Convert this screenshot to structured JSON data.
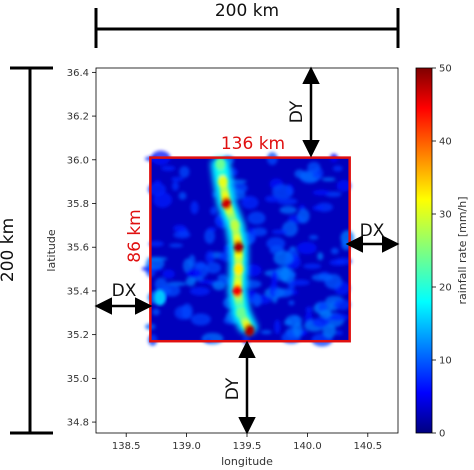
{
  "chart_data": {
    "type": "heatmap",
    "title": "",
    "xlabel": "longitude",
    "ylabel": "latitude",
    "xlim": [
      138.25,
      140.75
    ],
    "ylim": [
      34.75,
      36.42
    ],
    "x_ticks": [
      138.5,
      139.0,
      139.5,
      140.0,
      140.5
    ],
    "x_tick_labels": [
      "138.5",
      "139.0",
      "139.5",
      "140.0",
      "140.5"
    ],
    "y_ticks": [
      34.8,
      35.0,
      35.2,
      35.4,
      35.6,
      35.8,
      36.0,
      36.2,
      36.4
    ],
    "y_tick_labels": [
      "34.8",
      "35.0",
      "35.2",
      "35.4",
      "35.6",
      "35.8",
      "36.0",
      "36.2",
      "36.4"
    ],
    "colorbar": {
      "label": "rainfall rate [mm/h]",
      "range": [
        0,
        50
      ],
      "ticks": [
        0,
        10,
        20,
        30,
        40,
        50
      ],
      "tick_labels": [
        "0",
        "10",
        "20",
        "30",
        "40",
        "50"
      ],
      "colormap": "jet"
    },
    "inner_domain": {
      "lon": [
        138.7,
        140.35
      ],
      "lat": [
        35.17,
        36.01
      ],
      "border_color": "#e01010"
    },
    "rain_band_core": [
      {
        "lon": 139.28,
        "lat": 35.98,
        "value": 24
      },
      {
        "lon": 139.3,
        "lat": 35.9,
        "value": 30
      },
      {
        "lon": 139.33,
        "lat": 35.8,
        "value": 46
      },
      {
        "lon": 139.4,
        "lat": 35.7,
        "value": 28
      },
      {
        "lon": 139.43,
        "lat": 35.6,
        "value": 48
      },
      {
        "lon": 139.43,
        "lat": 35.5,
        "value": 32
      },
      {
        "lon": 139.42,
        "lat": 35.4,
        "value": 44
      },
      {
        "lon": 139.45,
        "lat": 35.3,
        "value": 24
      },
      {
        "lon": 139.52,
        "lat": 35.22,
        "value": 48
      }
    ],
    "annotations": {
      "outer_width": "200 km",
      "outer_height": "200 km",
      "inner_width": "136 km",
      "inner_height": "86 km",
      "dx_label": "DX",
      "dy_label": "DY"
    }
  }
}
